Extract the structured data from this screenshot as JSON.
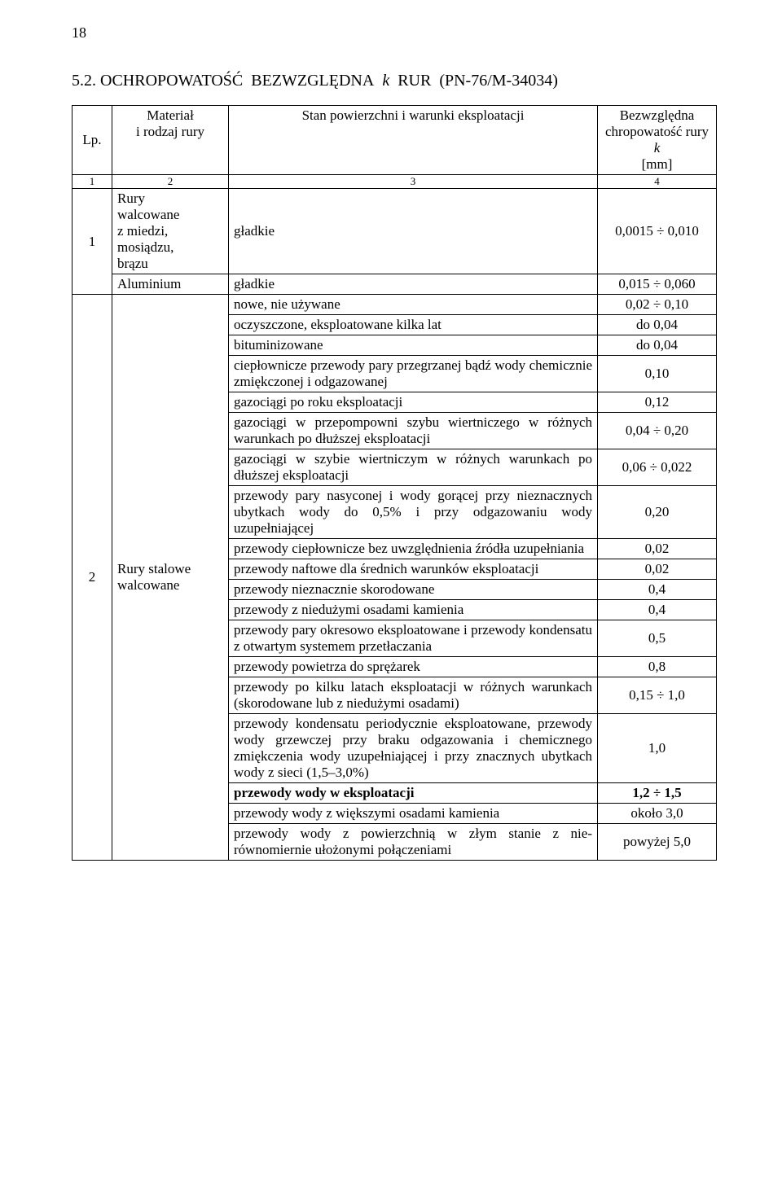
{
  "page_number": "18",
  "title_full": "5.2. OCHROPOWATOŚĆ BEZWZGLĘDNA k RUR (PN-76/M-34034)",
  "headers": {
    "lp": "Lp.",
    "mat_line1": "Materiał",
    "mat_line2": "i  rodzaj rury",
    "stan": "Stan powierzchni i warunki eksploatacji",
    "bezw_l1": "Bezwzględna",
    "bezw_l2_a": "chropowatość rury ",
    "bezw_l2_k": "k",
    "bezw_l3": "[mm]"
  },
  "numrow": {
    "c1": "1",
    "c2": "2",
    "c3": "3",
    "c4": "4"
  },
  "row1": {
    "lp": "1",
    "mat1_l1": "Rury",
    "mat1_l2": "walcowane",
    "mat1_l3": "z miedzi,",
    "mat1_l4": "mosiądzu,",
    "mat1_l5": "brązu",
    "desc1": "gładkie",
    "val1": "0,0015 ÷ 0,010",
    "mat2": "Aluminium",
    "desc2": "gładkie",
    "val2": "0,015 ÷ 0,060"
  },
  "row2": {
    "lp": "2",
    "mat_l1": "Rury stalowe",
    "mat_l2": "walcowane",
    "items": [
      {
        "d": "nowe, nie używane",
        "v": "0,02 ÷ 0,10"
      },
      {
        "d": "oczyszczone, eksploatowane kilka lat",
        "v": "do 0,04"
      },
      {
        "d": "bituminizowane",
        "v": "do 0,04"
      },
      {
        "d": "ciepłownicze przewody pary przegrzanej bądź wody chemicznie zmiękczonej i odgazowanej",
        "v": "0,10"
      },
      {
        "d": "gazociągi po roku eksploatacji",
        "v": "0,12"
      },
      {
        "d": "gazociągi w przepompowni szybu wiertniczego w różnych warunkach po dłuższej eksploatacji",
        "v": "0,04 ÷ 0,20"
      },
      {
        "d": "gazociągi w szybie wiertniczym w różnych warunkach po dłuższej eksploatacji",
        "v": "0,06 ÷ 0,022"
      },
      {
        "d": "przewody pary nasyconej i wody gorącej przy nieznacznych ubytkach wody do 0,5% i przy odgazowaniu wody uzupełniającej",
        "v": "0,20"
      },
      {
        "d": "przewody ciepłownicze bez uwzględnienia źródła uzupełniania",
        "v": "0,02"
      },
      {
        "d": "przewody naftowe dla średnich warunków eksploatacji",
        "v": "0,02"
      },
      {
        "d": "przewody nieznacznie skorodowane",
        "v": "0,4"
      },
      {
        "d": "przewody z niedużymi osadami kamienia",
        "v": "0,4"
      },
      {
        "d": "przewody pary okresowo eksploatowane i przewody kondensatu z otwartym systemem przetłaczania",
        "v": "0,5"
      },
      {
        "d": "przewody powietrza do sprężarek",
        "v": "0,8"
      },
      {
        "d": "przewody po kilku latach eksploatacji w różnych warunkach (skorodowane lub z niedużymi osadami)",
        "v": "0,15 ÷ 1,0"
      },
      {
        "d": "przewody kondensatu periodycznie eksploatowane, przewody wody grzewczej przy braku odgazowania i chemicznego zmiękczenia wody uzupełniającej i przy znacznych ubytkach wody z sieci (1,5–3,0%)",
        "v": "1,0"
      },
      {
        "d": "przewody wody w eksploatacji",
        "v": "1,2 ÷ 1,5",
        "bold": "1"
      },
      {
        "d": "przewody wody z większymi osadami kamienia",
        "v": "około 3,0"
      },
      {
        "d": "przewody wody z powierzchnią w złym stanie z nie-równomiernie ułożonymi połączeniami",
        "v": "powyżej 5,0"
      }
    ]
  }
}
